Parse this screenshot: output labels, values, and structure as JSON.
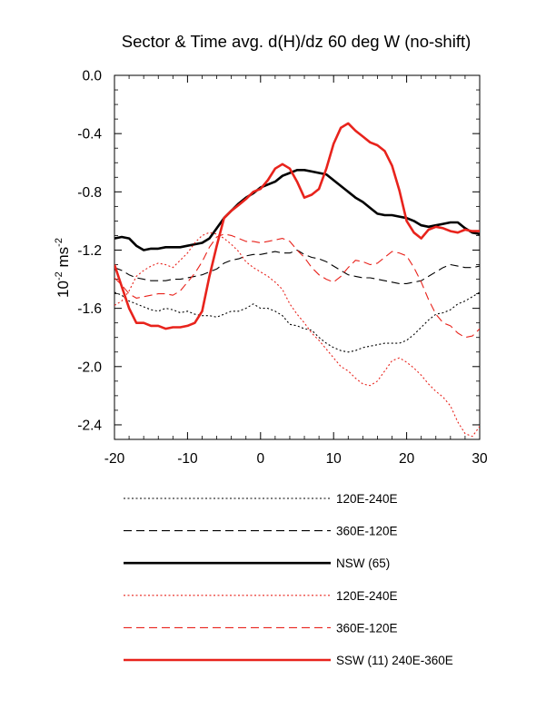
{
  "chart_data": {
    "type": "line",
    "title": "Sector & Time avg. d(H)/dz 60 deg W (no-shift)",
    "xlabel": "",
    "ylabel_base": "10",
    "ylabel_exp": "-2",
    "ylabel_unit": " ms",
    "ylabel_unit_exp": "-2",
    "xlim": [
      -20,
      30
    ],
    "ylim": [
      -2.5,
      0.0
    ],
    "x_ticks": [
      -20,
      -10,
      0,
      10,
      20,
      30
    ],
    "x_tick_labels": [
      "-20",
      "-10",
      "0",
      "10",
      "20",
      "30"
    ],
    "y_ticks": [
      0.0,
      -0.4,
      -0.8,
      -1.2,
      -1.6,
      -2.0,
      -2.4
    ],
    "y_tick_labels": [
      "0.0",
      "-0.4",
      "-0.8",
      "-1.2",
      "-1.6",
      "-2.0",
      "-2.4"
    ],
    "grid": false,
    "legend_position": "below plot",
    "series": [
      {
        "name": "120E-240E",
        "color": "#000000",
        "dash": "dotted",
        "width": "thin",
        "x": [
          -20,
          -19,
          -18,
          -17,
          -16,
          -15,
          -14,
          -13,
          -12,
          -11,
          -10,
          -9,
          -8,
          -7,
          -6,
          -5,
          -4,
          -3,
          -2,
          -1,
          0,
          1,
          2,
          3,
          4,
          5,
          6,
          7,
          8,
          9,
          10,
          11,
          12,
          13,
          14,
          15,
          16,
          17,
          18,
          19,
          20,
          21,
          22,
          23,
          24,
          25,
          26,
          27,
          28,
          29,
          30
        ],
        "y": [
          -1.49,
          -1.51,
          -1.55,
          -1.57,
          -1.59,
          -1.61,
          -1.62,
          -1.6,
          -1.61,
          -1.63,
          -1.62,
          -1.64,
          -1.65,
          -1.65,
          -1.66,
          -1.64,
          -1.62,
          -1.62,
          -1.6,
          -1.57,
          -1.6,
          -1.6,
          -1.62,
          -1.65,
          -1.71,
          -1.72,
          -1.74,
          -1.75,
          -1.8,
          -1.84,
          -1.87,
          -1.89,
          -1.9,
          -1.89,
          -1.87,
          -1.86,
          -1.85,
          -1.84,
          -1.84,
          -1.84,
          -1.82,
          -1.78,
          -1.73,
          -1.68,
          -1.64,
          -1.63,
          -1.61,
          -1.57,
          -1.55,
          -1.52,
          -1.49
        ]
      },
      {
        "name": "360E-120E",
        "color": "#000000",
        "dash": "dashed",
        "width": "thin",
        "x": [
          -20,
          -19,
          -18,
          -17,
          -16,
          -15,
          -14,
          -13,
          -12,
          -11,
          -10,
          -9,
          -8,
          -7,
          -6,
          -5,
          -4,
          -3,
          -2,
          -1,
          0,
          1,
          2,
          3,
          4,
          5,
          6,
          7,
          8,
          9,
          10,
          11,
          12,
          13,
          14,
          15,
          16,
          17,
          18,
          19,
          20,
          21,
          22,
          23,
          24,
          25,
          26,
          27,
          28,
          29,
          30
        ],
        "y": [
          -1.32,
          -1.34,
          -1.37,
          -1.39,
          -1.4,
          -1.41,
          -1.41,
          -1.41,
          -1.4,
          -1.4,
          -1.39,
          -1.38,
          -1.37,
          -1.35,
          -1.33,
          -1.29,
          -1.27,
          -1.26,
          -1.24,
          -1.23,
          -1.23,
          -1.22,
          -1.21,
          -1.22,
          -1.22,
          -1.2,
          -1.23,
          -1.25,
          -1.26,
          -1.28,
          -1.31,
          -1.34,
          -1.37,
          -1.38,
          -1.39,
          -1.39,
          -1.4,
          -1.41,
          -1.42,
          -1.43,
          -1.43,
          -1.42,
          -1.41,
          -1.38,
          -1.35,
          -1.32,
          -1.3,
          -1.31,
          -1.32,
          -1.32,
          -1.31
        ]
      },
      {
        "name": "NSW (65)",
        "color": "#000000",
        "dash": "solid",
        "width": "thick",
        "x": [
          -20,
          -19,
          -18,
          -17,
          -16,
          -15,
          -14,
          -13,
          -12,
          -11,
          -10,
          -9,
          -8,
          -7,
          -6,
          -5,
          -4,
          -3,
          -2,
          -1,
          0,
          1,
          2,
          3,
          4,
          5,
          6,
          7,
          8,
          9,
          10,
          11,
          12,
          13,
          14,
          15,
          16,
          17,
          18,
          19,
          20,
          21,
          22,
          23,
          24,
          25,
          26,
          27,
          28,
          29,
          30
        ],
        "y": [
          -1.12,
          -1.11,
          -1.12,
          -1.17,
          -1.2,
          -1.19,
          -1.19,
          -1.18,
          -1.18,
          -1.18,
          -1.17,
          -1.16,
          -1.15,
          -1.12,
          -1.05,
          -0.98,
          -0.93,
          -0.88,
          -0.84,
          -0.81,
          -0.77,
          -0.75,
          -0.73,
          -0.69,
          -0.67,
          -0.65,
          -0.65,
          -0.66,
          -0.67,
          -0.68,
          -0.72,
          -0.76,
          -0.8,
          -0.84,
          -0.87,
          -0.91,
          -0.95,
          -0.96,
          -0.96,
          -0.97,
          -0.98,
          -1.0,
          -1.03,
          -1.04,
          -1.03,
          -1.02,
          -1.01,
          -1.01,
          -1.05,
          -1.08,
          -1.09
        ]
      },
      {
        "name": "120E-240E",
        "color": "#e8231c",
        "dash": "dotted",
        "width": "thin",
        "x": [
          -20,
          -19,
          -18,
          -17,
          -16,
          -15,
          -14,
          -13,
          -12,
          -11,
          -10,
          -9,
          -8,
          -7,
          -6,
          -5,
          -4,
          -3,
          -2,
          -1,
          0,
          1,
          2,
          3,
          4,
          5,
          6,
          7,
          8,
          9,
          10,
          11,
          12,
          13,
          14,
          15,
          16,
          17,
          18,
          19,
          20,
          21,
          22,
          23,
          24,
          25,
          26,
          27,
          28,
          29,
          30
        ],
        "y": [
          -1.58,
          -1.55,
          -1.48,
          -1.38,
          -1.34,
          -1.31,
          -1.29,
          -1.3,
          -1.32,
          -1.27,
          -1.22,
          -1.15,
          -1.1,
          -1.08,
          -1.09,
          -1.12,
          -1.16,
          -1.21,
          -1.28,
          -1.32,
          -1.35,
          -1.38,
          -1.42,
          -1.47,
          -1.57,
          -1.64,
          -1.7,
          -1.77,
          -1.82,
          -1.88,
          -1.94,
          -2.0,
          -2.03,
          -2.08,
          -2.12,
          -2.13,
          -2.1,
          -2.03,
          -1.96,
          -1.94,
          -1.97,
          -2.01,
          -2.06,
          -2.12,
          -2.17,
          -2.21,
          -2.27,
          -2.38,
          -2.46,
          -2.48,
          -2.41
        ]
      },
      {
        "name": "360E-120E",
        "color": "#e8231c",
        "dash": "dashed",
        "width": "thin",
        "x": [
          -20,
          -19,
          -18,
          -17,
          -16,
          -15,
          -14,
          -13,
          -12,
          -11,
          -10,
          -9,
          -8,
          -7,
          -6,
          -5,
          -4,
          -3,
          -2,
          -1,
          0,
          1,
          2,
          3,
          4,
          5,
          6,
          7,
          8,
          9,
          10,
          11,
          12,
          13,
          14,
          15,
          16,
          17,
          18,
          19,
          20,
          21,
          22,
          23,
          24,
          25,
          26,
          27,
          28,
          29,
          30
        ],
        "y": [
          -1.39,
          -1.44,
          -1.5,
          -1.53,
          -1.52,
          -1.51,
          -1.5,
          -1.5,
          -1.51,
          -1.48,
          -1.42,
          -1.36,
          -1.28,
          -1.18,
          -1.11,
          -1.09,
          -1.1,
          -1.12,
          -1.14,
          -1.14,
          -1.15,
          -1.14,
          -1.13,
          -1.12,
          -1.14,
          -1.2,
          -1.25,
          -1.32,
          -1.37,
          -1.4,
          -1.42,
          -1.38,
          -1.32,
          -1.27,
          -1.28,
          -1.3,
          -1.29,
          -1.25,
          -1.21,
          -1.22,
          -1.24,
          -1.32,
          -1.42,
          -1.54,
          -1.64,
          -1.7,
          -1.72,
          -1.77,
          -1.8,
          -1.79,
          -1.74
        ]
      },
      {
        "name": "SSW (11) 240E-360E",
        "color": "#e8231c",
        "dash": "solid",
        "width": "thick",
        "x": [
          -20,
          -19,
          -18,
          -17,
          -16,
          -15,
          -14,
          -13,
          -12,
          -11,
          -10,
          -9,
          -8,
          -7,
          -6,
          -5,
          -4,
          -3,
          -2,
          -1,
          0,
          1,
          2,
          3,
          4,
          5,
          6,
          7,
          8,
          9,
          10,
          11,
          12,
          13,
          14,
          15,
          16,
          17,
          18,
          19,
          20,
          21,
          22,
          23,
          24,
          25,
          26,
          27,
          28,
          29,
          30
        ],
        "y": [
          -1.3,
          -1.45,
          -1.6,
          -1.7,
          -1.7,
          -1.72,
          -1.72,
          -1.74,
          -1.73,
          -1.73,
          -1.72,
          -1.7,
          -1.62,
          -1.38,
          -1.17,
          -0.98,
          -0.93,
          -0.89,
          -0.85,
          -0.8,
          -0.78,
          -0.72,
          -0.64,
          -0.61,
          -0.64,
          -0.73,
          -0.84,
          -0.82,
          -0.78,
          -0.64,
          -0.47,
          -0.36,
          -0.33,
          -0.38,
          -0.42,
          -0.46,
          -0.48,
          -0.52,
          -0.62,
          -0.79,
          -1.0,
          -1.08,
          -1.12,
          -1.06,
          -1.04,
          -1.05,
          -1.07,
          -1.08,
          -1.06,
          -1.07,
          -1.07
        ]
      }
    ],
    "legend": [
      {
        "label": "120E-240E",
        "series": 0
      },
      {
        "label": "360E-120E",
        "series": 1
      },
      {
        "label": "NSW (65)",
        "series": 2
      },
      {
        "label": "120E-240E",
        "series": 3
      },
      {
        "label": "360E-120E",
        "series": 4
      },
      {
        "label": "SSW (11) 240E-360E",
        "series": 5
      }
    ]
  }
}
